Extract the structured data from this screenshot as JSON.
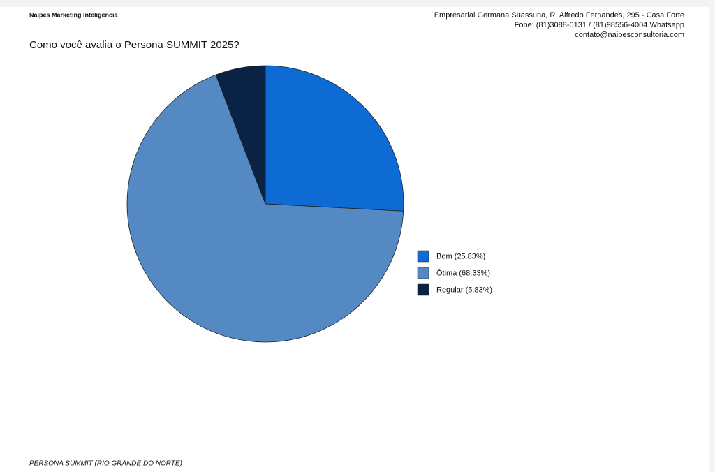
{
  "header": {
    "company": "Naipes Marketing Inteligência",
    "address": "Empresarial Germana Suassuna, R. Alfredo Fernandes, 295 - Casa Forte",
    "phone": "Fone: (81)3088-0131 / (81)98556-4004 Whatsapp",
    "email": "contato@naipesconsultoria.com"
  },
  "chart_data": {
    "type": "pie",
    "title": "Como você avalia o Persona SUMMIT 2025?",
    "categories": [
      "Bom (25.83%)",
      "Ótima (68.33%)",
      "Regular (5.83%)"
    ],
    "values": [
      25.83,
      68.33,
      5.83
    ],
    "colors": [
      "#0e6bd4",
      "#5589c4",
      "#0a2344"
    ]
  },
  "footer": {
    "text": "PERSONA SUMMIT (RIO GRANDE DO NORTE)"
  }
}
